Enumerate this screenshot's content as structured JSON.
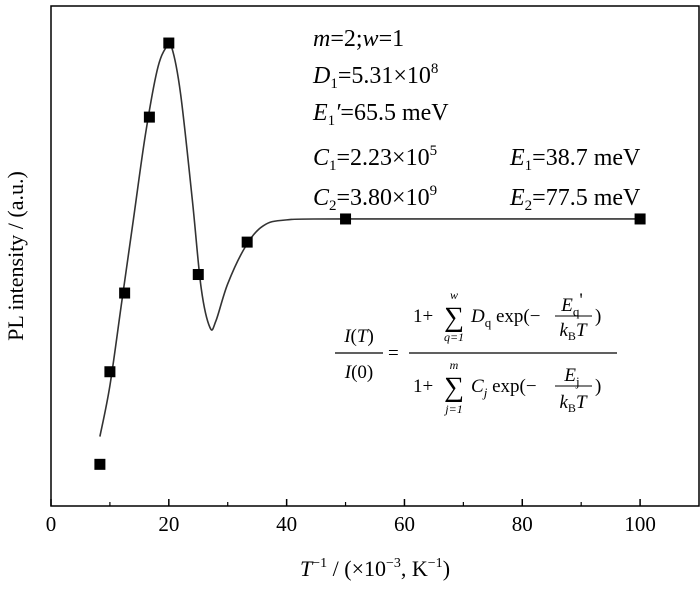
{
  "chart_data": {
    "type": "scatter",
    "xlabel": "T⁻¹ / (×10⁻³, K⁻¹)",
    "ylabel": "PL intensity / (a.u.)",
    "xlim": [
      0,
      110
    ],
    "ylim": [
      0,
      1.08
    ],
    "x_ticks": [
      0,
      20,
      40,
      60,
      80,
      100
    ],
    "y_ticks_shown": false,
    "grid": false,
    "series": [
      {
        "marker": "square",
        "points": [
          {
            "x": 8.3,
            "y": 0.09
          },
          {
            "x": 10.0,
            "y": 0.29
          },
          {
            "x": 12.5,
            "y": 0.46
          },
          {
            "x": 16.7,
            "y": 0.84
          },
          {
            "x": 20.0,
            "y": 1.0
          },
          {
            "x": 25.0,
            "y": 0.5
          },
          {
            "x": 33.3,
            "y": 0.57
          },
          {
            "x": 50.0,
            "y": 0.62
          },
          {
            "x": 100.0,
            "y": 0.62
          }
        ]
      },
      {
        "style": "line",
        "points": [
          {
            "x": 8.3,
            "y": 0.15
          },
          {
            "x": 10.0,
            "y": 0.26
          },
          {
            "x": 12.0,
            "y": 0.44
          },
          {
            "x": 14.0,
            "y": 0.62
          },
          {
            "x": 16.0,
            "y": 0.8
          },
          {
            "x": 18.0,
            "y": 0.94
          },
          {
            "x": 19.5,
            "y": 0.99
          },
          {
            "x": 20.5,
            "y": 0.99
          },
          {
            "x": 22.0,
            "y": 0.89
          },
          {
            "x": 24.0,
            "y": 0.66
          },
          {
            "x": 25.5,
            "y": 0.47
          },
          {
            "x": 27.0,
            "y": 0.385
          },
          {
            "x": 28.0,
            "y": 0.4
          },
          {
            "x": 30.0,
            "y": 0.48
          },
          {
            "x": 33.0,
            "y": 0.56
          },
          {
            "x": 36.0,
            "y": 0.605
          },
          {
            "x": 40.0,
            "y": 0.618
          },
          {
            "x": 50.0,
            "y": 0.62
          },
          {
            "x": 100.0,
            "y": 0.62
          }
        ]
      }
    ],
    "annotations": {
      "line1": {
        "m": "m",
        "eq1": "=2;",
        "w": "w",
        "eq2": "=1"
      },
      "line2": {
        "sym": "D",
        "sub": "1",
        "val": "=5.31×10",
        "sup": "8"
      },
      "line3": {
        "sym": "E",
        "sub": "1",
        "prime": "′",
        "val": "=65.5 meV"
      },
      "line4": {
        "c_sym": "C",
        "c_sub": "1",
        "c_val": "=2.23×10",
        "c_sup": "5",
        "e_sym": "E",
        "e_sub": "1",
        "e_val": "=38.7 meV"
      },
      "line5": {
        "c_sym": "C",
        "c_sub": "2",
        "c_val": "=3.80×10",
        "c_sup": "9",
        "e_sym": "E",
        "e_sub": "2",
        "e_val": "=77.5 meV"
      }
    },
    "formula": {
      "lhs_num": "I(T)",
      "lhs_den": "I(0)",
      "eq": "=",
      "num_one_plus": "1+",
      "num_sum_top": "w",
      "num_sum_bottom": "q=1",
      "num_sum_sign": "∑",
      "num_term": "D",
      "num_term_sub": "q",
      "exp_text": "exp(−",
      "num_frac_top": "E",
      "num_frac_top_sub": "q",
      "num_frac_top_prime": "'",
      "frac_bottom_k": "k",
      "frac_bottom_sub": "B",
      "frac_bottom_T": "T",
      "close_paren": ")",
      "den_one_plus": "1+",
      "den_sum_top": "m",
      "den_sum_bottom": "j=1",
      "den_sum_sign": "∑",
      "den_term": "C",
      "den_term_sub": "j",
      "den_frac_top": "E",
      "den_frac_top_sub": "j"
    }
  }
}
